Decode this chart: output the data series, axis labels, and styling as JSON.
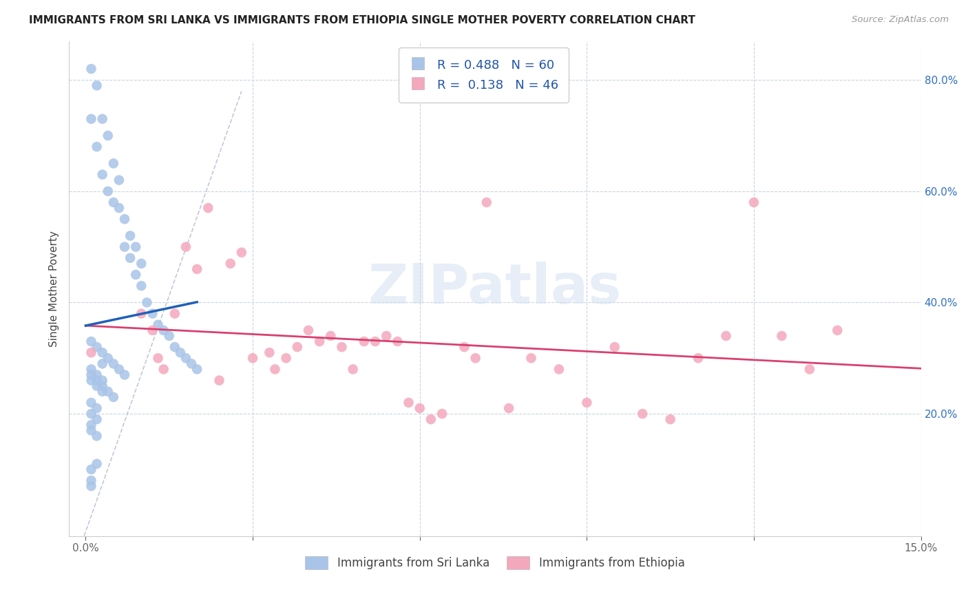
{
  "title": "IMMIGRANTS FROM SRI LANKA VS IMMIGRANTS FROM ETHIOPIA SINGLE MOTHER POVERTY CORRELATION CHART",
  "source": "Source: ZipAtlas.com",
  "ylabel": "Single Mother Poverty",
  "xlim": [
    -0.003,
    0.15
  ],
  "ylim": [
    -0.02,
    0.87
  ],
  "x_ticks": [
    0.0,
    0.03,
    0.06,
    0.09,
    0.12,
    0.15
  ],
  "x_tick_labels": [
    "0.0%",
    "",
    "",
    "",
    "",
    "15.0%"
  ],
  "y_ticks_right": [
    0.2,
    0.4,
    0.6,
    0.8
  ],
  "y_tick_labels_right": [
    "20.0%",
    "40.0%",
    "60.0%",
    "80.0%"
  ],
  "sri_lanka_color": "#a8c4e8",
  "ethiopia_color": "#f4a8bc",
  "sri_lanka_line_color": "#2060b8",
  "ethiopia_line_color": "#d84070",
  "diagonal_color": "#b0bcd0",
  "R_sri_lanka": 0.488,
  "N_sri_lanka": 60,
  "R_ethiopia": 0.138,
  "N_ethiopia": 46,
  "watermark": "ZIPatlas",
  "sri_lanka_x": [
    0.001,
    0.002,
    0.003,
    0.004,
    0.005,
    0.006,
    0.007,
    0.008,
    0.009,
    0.01,
    0.011,
    0.012,
    0.013,
    0.014,
    0.015,
    0.016,
    0.017,
    0.018,
    0.019,
    0.02,
    0.001,
    0.002,
    0.003,
    0.004,
    0.005,
    0.006,
    0.007,
    0.008,
    0.009,
    0.01,
    0.001,
    0.002,
    0.003,
    0.004,
    0.005,
    0.001,
    0.002,
    0.003,
    0.004,
    0.005,
    0.006,
    0.007,
    0.001,
    0.002,
    0.003,
    0.001,
    0.002,
    0.003,
    0.001,
    0.002,
    0.001,
    0.002,
    0.001,
    0.001,
    0.002,
    0.003,
    0.001,
    0.002,
    0.001,
    0.001
  ],
  "sri_lanka_y": [
    0.82,
    0.79,
    0.73,
    0.7,
    0.65,
    0.62,
    0.5,
    0.48,
    0.45,
    0.43,
    0.4,
    0.38,
    0.36,
    0.35,
    0.34,
    0.32,
    0.31,
    0.3,
    0.29,
    0.28,
    0.73,
    0.68,
    0.63,
    0.6,
    0.58,
    0.57,
    0.55,
    0.52,
    0.5,
    0.47,
    0.27,
    0.26,
    0.25,
    0.24,
    0.23,
    0.33,
    0.32,
    0.31,
    0.3,
    0.29,
    0.28,
    0.27,
    0.26,
    0.25,
    0.24,
    0.28,
    0.27,
    0.26,
    0.22,
    0.21,
    0.2,
    0.19,
    0.18,
    0.17,
    0.16,
    0.29,
    0.1,
    0.11,
    0.08,
    0.07
  ],
  "ethiopia_x": [
    0.001,
    0.016,
    0.022,
    0.026,
    0.028,
    0.03,
    0.033,
    0.034,
    0.036,
    0.038,
    0.04,
    0.042,
    0.044,
    0.046,
    0.048,
    0.05,
    0.052,
    0.054,
    0.056,
    0.058,
    0.06,
    0.062,
    0.064,
    0.01,
    0.012,
    0.013,
    0.014,
    0.018,
    0.02,
    0.024,
    0.068,
    0.07,
    0.072,
    0.076,
    0.08,
    0.085,
    0.09,
    0.095,
    0.1,
    0.105,
    0.11,
    0.115,
    0.12,
    0.125,
    0.13,
    0.135
  ],
  "ethiopia_y": [
    0.31,
    0.38,
    0.57,
    0.47,
    0.49,
    0.3,
    0.31,
    0.28,
    0.3,
    0.32,
    0.35,
    0.33,
    0.34,
    0.32,
    0.28,
    0.33,
    0.33,
    0.34,
    0.33,
    0.22,
    0.21,
    0.19,
    0.2,
    0.38,
    0.35,
    0.3,
    0.28,
    0.5,
    0.46,
    0.26,
    0.32,
    0.3,
    0.58,
    0.21,
    0.3,
    0.28,
    0.22,
    0.32,
    0.2,
    0.19,
    0.3,
    0.34,
    0.58,
    0.34,
    0.28,
    0.35
  ]
}
